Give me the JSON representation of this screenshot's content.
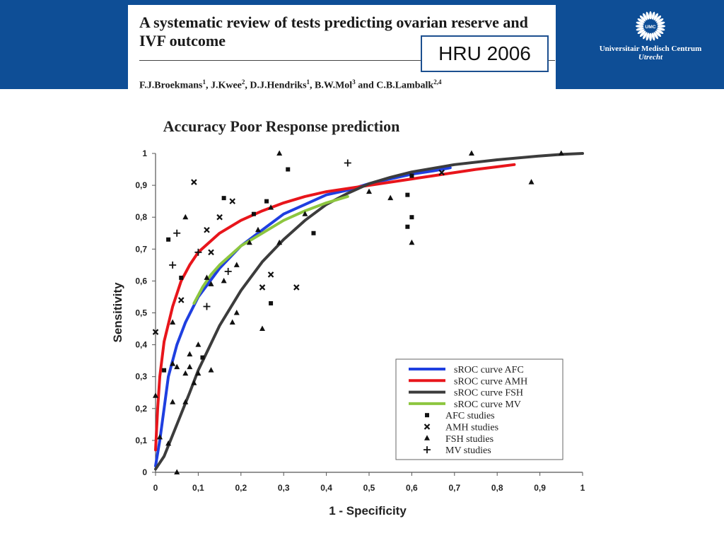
{
  "header": {
    "paper_title": "A systematic review of tests predicting ovarian reserve and IVF outcome",
    "authors": [
      {
        "name": "F.J.Broekmans",
        "sup": "1",
        "sep": ", "
      },
      {
        "name": "J.Kwee",
        "sup": "2",
        "sep": ", "
      },
      {
        "name": "D.J.Hendriks",
        "sup": "1",
        "sep": ", "
      },
      {
        "name": "B.W.Mol",
        "sup": "3",
        "sep": " and "
      },
      {
        "name": "C.B.Lambalk",
        "sup": "2,4",
        "sep": ""
      }
    ],
    "badge": "HRU 2006",
    "logo_name": "Universitair Medisch Centrum",
    "logo_city": "Utrecht",
    "logo_mark": "UMC",
    "band_color": "#0e4e96"
  },
  "chart_data": {
    "type": "scatter",
    "title": "Accuracy Poor Response prediction",
    "xlabel": "1 - Specificity",
    "ylabel": "Sensitivity",
    "xlim": [
      0,
      1
    ],
    "ylim": [
      0,
      1
    ],
    "ticks": [
      "0",
      "0,1",
      "0,2",
      "0,3",
      "0,4",
      "0,5",
      "0,6",
      "0,7",
      "0,8",
      "0,9",
      "1"
    ],
    "grid": false,
    "legend_position": "bottom-right",
    "curves": [
      {
        "name": "sROC curve AFC",
        "color": "#1f3fe0",
        "points": [
          [
            0,
            0.02
          ],
          [
            0.01,
            0.1
          ],
          [
            0.02,
            0.2
          ],
          [
            0.03,
            0.3
          ],
          [
            0.05,
            0.4
          ],
          [
            0.07,
            0.47
          ],
          [
            0.1,
            0.55
          ],
          [
            0.15,
            0.64
          ],
          [
            0.2,
            0.71
          ],
          [
            0.25,
            0.76
          ],
          [
            0.3,
            0.81
          ],
          [
            0.35,
            0.84
          ],
          [
            0.4,
            0.87
          ],
          [
            0.45,
            0.885
          ],
          [
            0.5,
            0.905
          ],
          [
            0.55,
            0.92
          ],
          [
            0.6,
            0.935
          ],
          [
            0.65,
            0.945
          ],
          [
            0.69,
            0.955
          ]
        ]
      },
      {
        "name": "sROC curve AMH",
        "color": "#e8151b",
        "points": [
          [
            0,
            0.07
          ],
          [
            0.005,
            0.2
          ],
          [
            0.01,
            0.3
          ],
          [
            0.02,
            0.41
          ],
          [
            0.04,
            0.52
          ],
          [
            0.06,
            0.6
          ],
          [
            0.08,
            0.65
          ],
          [
            0.1,
            0.69
          ],
          [
            0.15,
            0.75
          ],
          [
            0.2,
            0.79
          ],
          [
            0.25,
            0.82
          ],
          [
            0.3,
            0.845
          ],
          [
            0.35,
            0.865
          ],
          [
            0.4,
            0.88
          ],
          [
            0.45,
            0.89
          ],
          [
            0.5,
            0.9
          ],
          [
            0.55,
            0.91
          ],
          [
            0.6,
            0.92
          ],
          [
            0.65,
            0.93
          ],
          [
            0.7,
            0.94
          ],
          [
            0.75,
            0.95
          ],
          [
            0.8,
            0.958
          ],
          [
            0.84,
            0.965
          ]
        ]
      },
      {
        "name": "sROC curve FSH",
        "color": "#3c3c3c",
        "points": [
          [
            0,
            0.01
          ],
          [
            0.02,
            0.05
          ],
          [
            0.05,
            0.15
          ],
          [
            0.08,
            0.25
          ],
          [
            0.1,
            0.32
          ],
          [
            0.15,
            0.46
          ],
          [
            0.2,
            0.57
          ],
          [
            0.25,
            0.66
          ],
          [
            0.3,
            0.73
          ],
          [
            0.35,
            0.79
          ],
          [
            0.4,
            0.84
          ],
          [
            0.45,
            0.875
          ],
          [
            0.5,
            0.905
          ],
          [
            0.55,
            0.925
          ],
          [
            0.6,
            0.942
          ],
          [
            0.7,
            0.965
          ],
          [
            0.8,
            0.98
          ],
          [
            0.9,
            0.992
          ],
          [
            0.95,
            0.997
          ],
          [
            1,
            1
          ]
        ]
      },
      {
        "name": "sROC curve MV",
        "color": "#8dc63f",
        "points": [
          [
            0.09,
            0.53
          ],
          [
            0.11,
            0.58
          ],
          [
            0.13,
            0.62
          ],
          [
            0.15,
            0.65
          ],
          [
            0.2,
            0.71
          ],
          [
            0.25,
            0.75
          ],
          [
            0.3,
            0.79
          ],
          [
            0.35,
            0.82
          ],
          [
            0.4,
            0.845
          ],
          [
            0.45,
            0.865
          ]
        ]
      }
    ],
    "studies": [
      {
        "name": "AFC studies",
        "marker": "square",
        "points": [
          [
            0.02,
            0.32
          ],
          [
            0.03,
            0.73
          ],
          [
            0.06,
            0.61
          ],
          [
            0.11,
            0.36
          ],
          [
            0.16,
            0.86
          ],
          [
            0.23,
            0.81
          ],
          [
            0.26,
            0.85
          ],
          [
            0.27,
            0.53
          ],
          [
            0.31,
            0.95
          ],
          [
            0.37,
            0.75
          ],
          [
            0.59,
            0.87
          ],
          [
            0.59,
            0.77
          ],
          [
            0.6,
            0.8
          ],
          [
            0.6,
            0.93
          ]
        ]
      },
      {
        "name": "AMH studies",
        "marker": "x",
        "points": [
          [
            0,
            0.44
          ],
          [
            0.06,
            0.54
          ],
          [
            0.09,
            0.91
          ],
          [
            0.12,
            0.76
          ],
          [
            0.13,
            0.69
          ],
          [
            0.15,
            0.8
          ],
          [
            0.18,
            0.85
          ],
          [
            0.25,
            0.58
          ],
          [
            0.27,
            0.62
          ],
          [
            0.33,
            0.58
          ],
          [
            0.67,
            0.94
          ]
        ]
      },
      {
        "name": "FSH studies",
        "marker": "triangle",
        "points": [
          [
            0,
            0.24
          ],
          [
            0.01,
            0.11
          ],
          [
            0.03,
            0.09
          ],
          [
            0.04,
            0.47
          ],
          [
            0.04,
            0.34
          ],
          [
            0.04,
            0.22
          ],
          [
            0.05,
            0.33
          ],
          [
            0.05,
            0
          ],
          [
            0.07,
            0.22
          ],
          [
            0.07,
            0.31
          ],
          [
            0.08,
            0.37
          ],
          [
            0.08,
            0.33
          ],
          [
            0.09,
            0.28
          ],
          [
            0.1,
            0.31
          ],
          [
            0.1,
            0.4
          ],
          [
            0.12,
            0.61
          ],
          [
            0.13,
            0.59
          ],
          [
            0.13,
            0.32
          ],
          [
            0.16,
            0.6
          ],
          [
            0.18,
            0.47
          ],
          [
            0.19,
            0.5
          ],
          [
            0.19,
            0.65
          ],
          [
            0.22,
            0.72
          ],
          [
            0.24,
            0.76
          ],
          [
            0.25,
            0.45
          ],
          [
            0.27,
            0.83
          ],
          [
            0.29,
            0.72
          ],
          [
            0.29,
            1
          ],
          [
            0.35,
            0.81
          ],
          [
            0.5,
            0.88
          ],
          [
            0.55,
            0.86
          ],
          [
            0.6,
            0.72
          ],
          [
            0.74,
            1
          ],
          [
            0.88,
            0.91
          ],
          [
            0.95,
            1
          ],
          [
            0.07,
            0.8
          ]
        ]
      },
      {
        "name": "MV studies",
        "marker": "plus",
        "points": [
          [
            0.04,
            0.65
          ],
          [
            0.05,
            0.75
          ],
          [
            0.1,
            0.69
          ],
          [
            0.12,
            0.52
          ],
          [
            0.17,
            0.63
          ],
          [
            0.45,
            0.97
          ]
        ]
      }
    ]
  }
}
